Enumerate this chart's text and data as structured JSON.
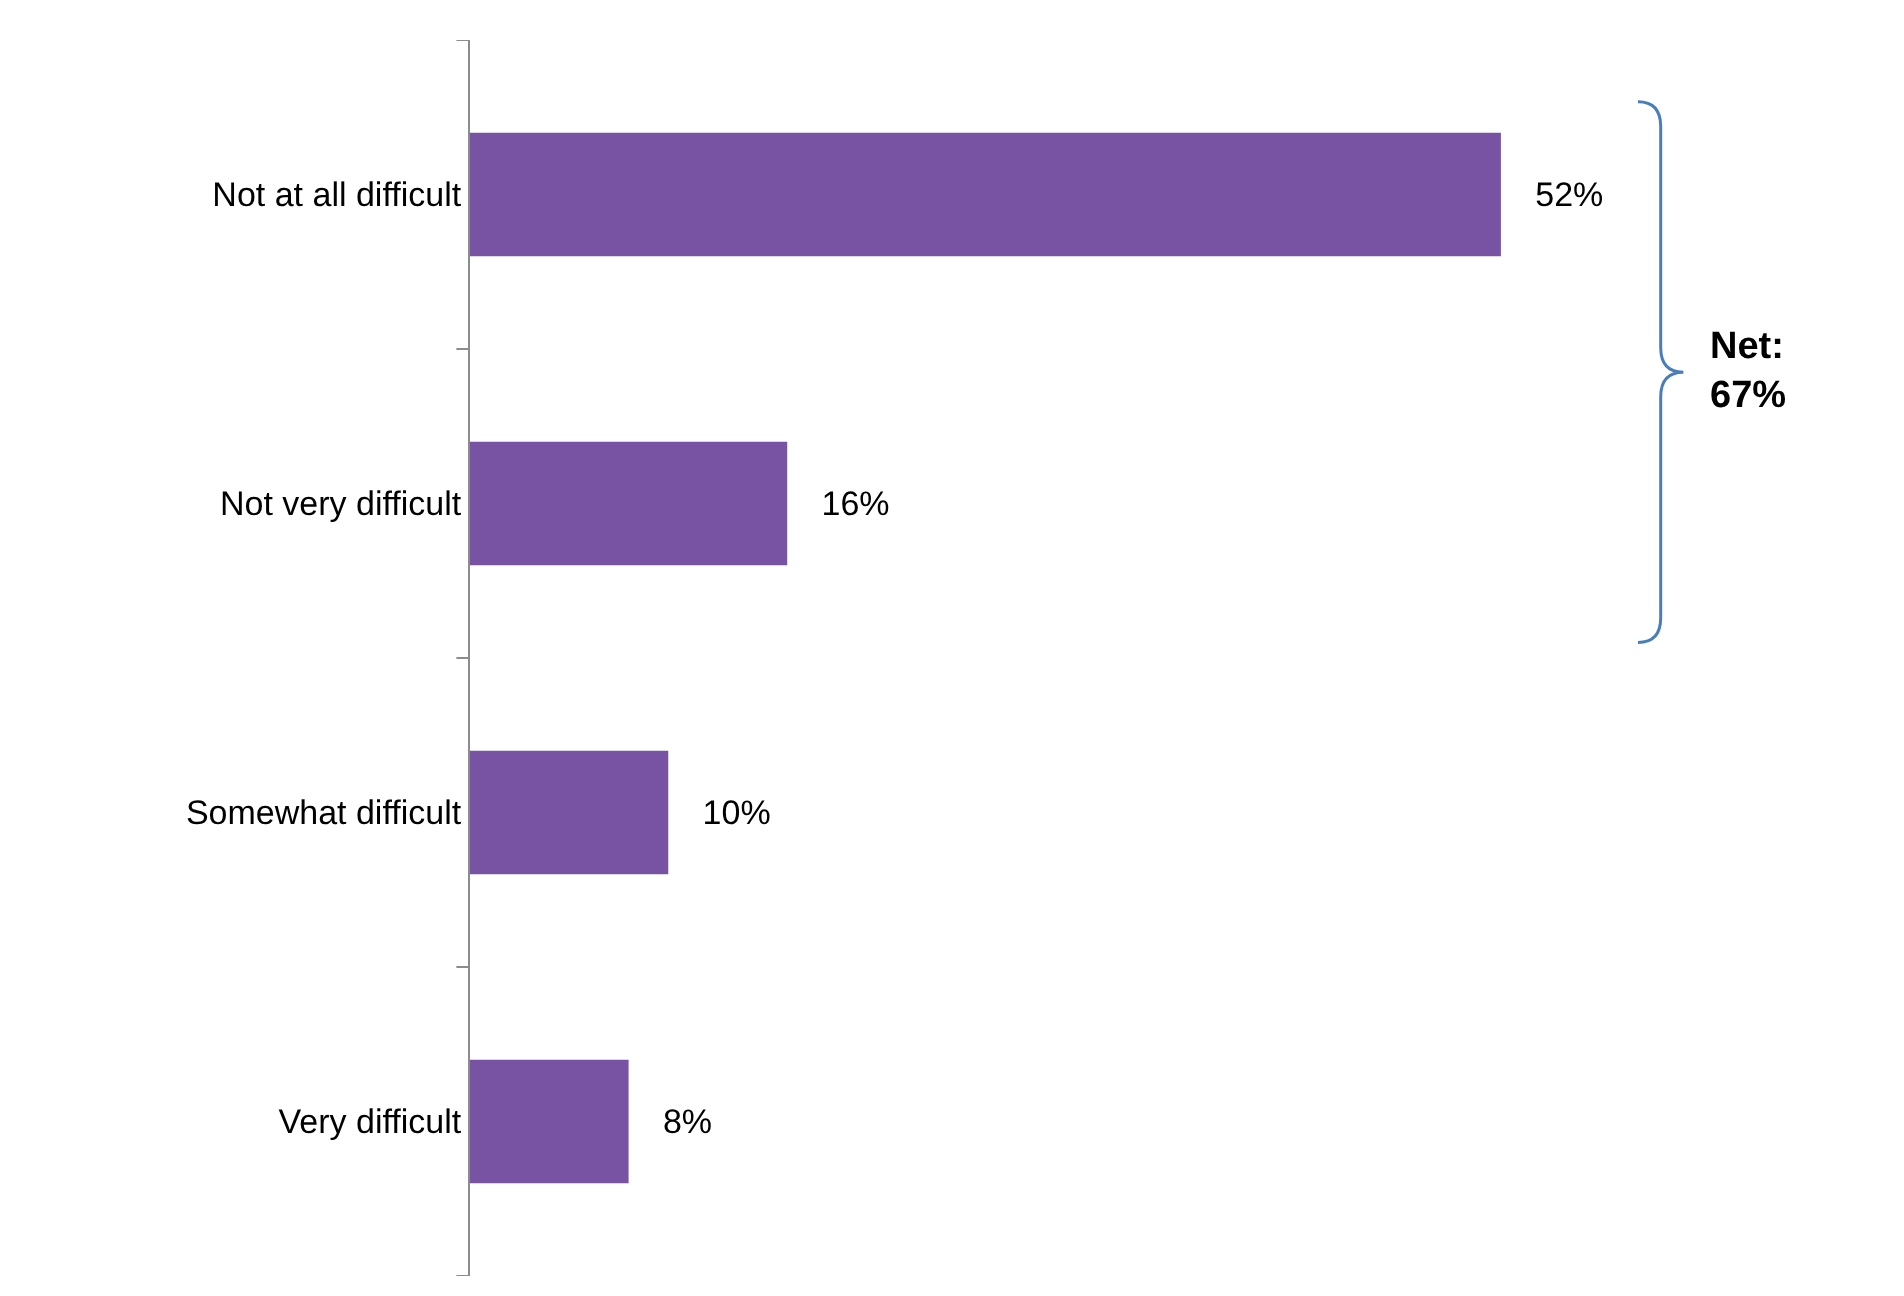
{
  "chart_data": {
    "type": "bar",
    "orientation": "horizontal",
    "categories": [
      "Not at all difficult",
      "Not very difficult",
      "Somewhat difficult",
      "Very difficult"
    ],
    "values": [
      52,
      16,
      10,
      8
    ],
    "value_labels": [
      "52%",
      "16%",
      "10%",
      "8%"
    ],
    "color": "#7953a3",
    "annotations": [
      "Net:\n67%"
    ]
  }
}
